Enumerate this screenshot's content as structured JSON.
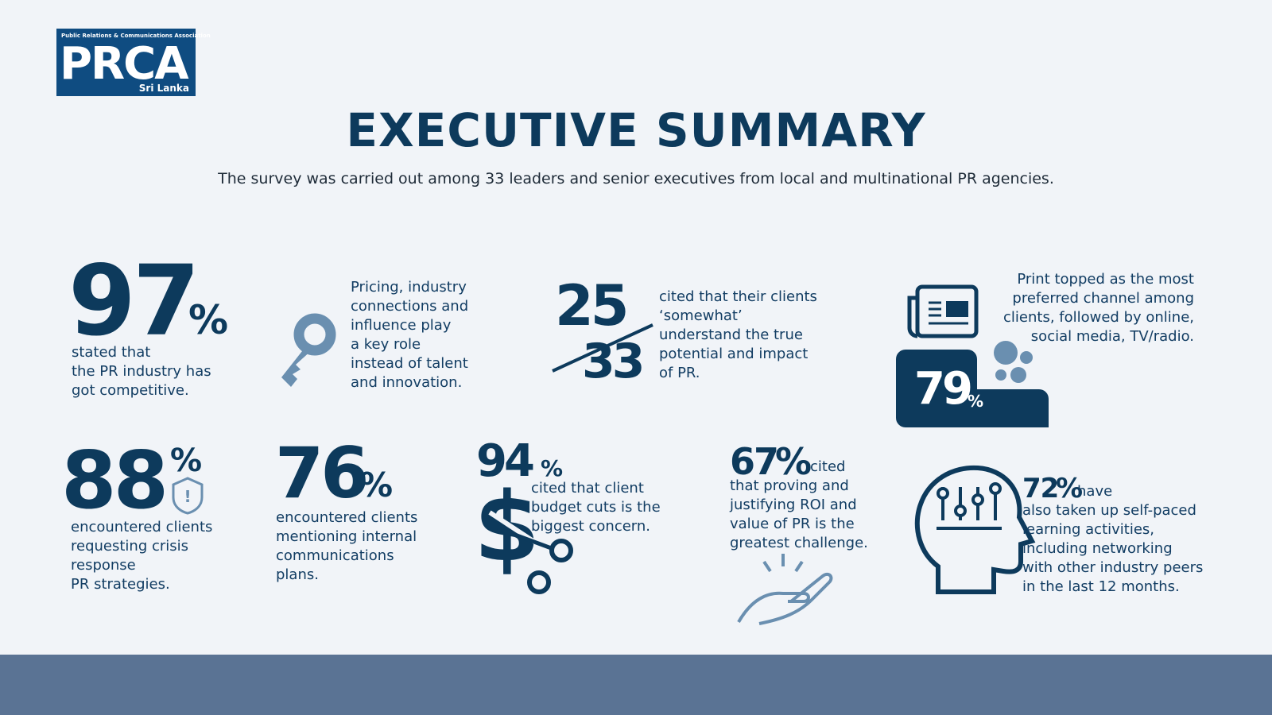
{
  "logo": {
    "caption": "Public Relations & Communications Association",
    "name": "PRCA",
    "region": "Sri Lanka"
  },
  "title": "EXECUTIVE SUMMARY",
  "subtitle": "The survey was carried out among 33 leaders and senior executives from local and multinational PR agencies.",
  "stats": [
    {
      "figure": "97",
      "unit": "%",
      "lines": [
        "stated that",
        "the PR industry has",
        "got competitive."
      ]
    },
    {
      "lines": [
        "Pricing, industry",
        "connections and",
        "influence play",
        "a key role",
        "instead of talent",
        "and innovation."
      ]
    },
    {
      "numerator": "25",
      "denominator": "33",
      "lines": [
        "cited that their clients",
        "‘somewhat’",
        "understand the true",
        "potential and impact",
        "of PR."
      ]
    },
    {
      "figure": "79",
      "unit": "%",
      "lines": [
        "Print topped as the most",
        "preferred channel among",
        "clients, followed by online,",
        "social media, TV/radio."
      ]
    },
    {
      "figure": "88",
      "unit": "%",
      "lines": [
        "encountered clients",
        "requesting crisis",
        "response",
        "PR strategies."
      ]
    },
    {
      "figure": "76",
      "unit": "%",
      "lines": [
        "encountered clients",
        "mentioning internal",
        "communications",
        "plans."
      ]
    },
    {
      "figure": "94",
      "unit": "%",
      "lines": [
        "cited that client",
        "budget cuts is the",
        "biggest concern."
      ]
    },
    {
      "figure": "67",
      "unit": "%",
      "lead": "cited",
      "lines": [
        "that proving and",
        "justifying ROI and",
        "value of PR is the",
        "greatest challenge."
      ]
    },
    {
      "figure": "72",
      "unit": "%",
      "lead": "have",
      "lines": [
        "also taken up self-paced",
        "learning activities,",
        "including networking",
        "with other industry peers",
        "in the last 12 months."
      ]
    }
  ]
}
